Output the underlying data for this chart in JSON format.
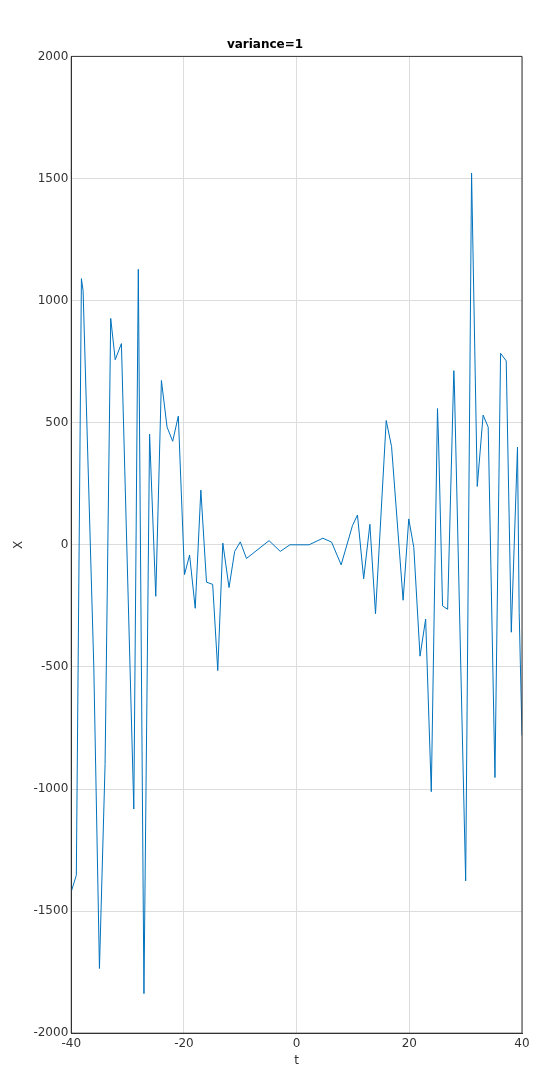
{
  "chart_data": {
    "type": "line",
    "title": "variance=1",
    "xlabel": "t",
    "ylabel": "X",
    "x": [
      -40,
      -39.1,
      -38.2,
      -37.9,
      -36,
      -35,
      -34,
      -33,
      -32.2,
      -31.1,
      -28.9,
      -28.1,
      -27.1,
      -26.1,
      -25,
      -24,
      -23,
      -22,
      -21,
      -19.9,
      -19,
      -18,
      -17,
      -16,
      -14.9,
      -14,
      -13.1,
      -12,
      -11,
      -10,
      -8.9,
      -4.9,
      -2.9,
      -1.2,
      2.2,
      4.65,
      6.2,
      7.9,
      9.9,
      10.8,
      11.9,
      13,
      14,
      15.9,
      16.85,
      18.9,
      19.9,
      20.8,
      21.9,
      22.9,
      23.9,
      25,
      25.2,
      25.9,
      26.8,
      27.9,
      28,
      30,
      31.05,
      32.06,
      33.1,
      34,
      35.2,
      36.2,
      37.2,
      38.1,
      39.2,
      39.5,
      40
    ],
    "series": [
      {
        "color": "#0072bd",
        "values": [
          -1420,
          -1353,
          1090,
          1040,
          -500,
          -1735,
          -900,
          927,
          758,
          824,
          -1082,
          1128,
          -1838,
          453,
          -211,
          673,
          482,
          424,
          527,
          -122,
          -42,
          -260,
          224,
          -153,
          -162,
          -515,
          7,
          -175,
          -27,
          12,
          -56,
          17,
          -27,
          0,
          0,
          27,
          11,
          -82,
          78,
          122,
          -139,
          84,
          -282,
          509,
          402,
          -227,
          106,
          -11,
          -456,
          -304,
          -1011,
          558,
          417,
          -250,
          -264,
          713,
          655,
          -1376,
          1522,
          239,
          531,
          482,
          -953,
          784,
          753,
          -358,
          400,
          -278,
          -780
        ]
      }
    ],
    "xlim": [
      -40,
      40
    ],
    "xticks": [
      -40,
      -20,
      0,
      20,
      40
    ],
    "ylim": [
      -2000,
      2000
    ],
    "yticks": [
      -2000,
      -1500,
      -1000,
      -500,
      0,
      500,
      1000,
      1500,
      2000
    ],
    "grid": true,
    "legend": false,
    "line_style": "solid",
    "marker": "none"
  }
}
